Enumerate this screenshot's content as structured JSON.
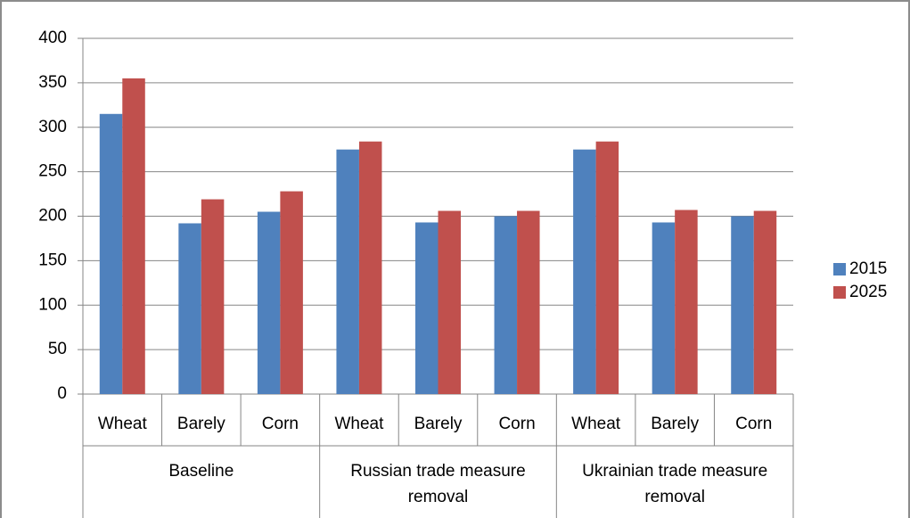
{
  "chart_data": {
    "type": "bar",
    "categories": [
      "Wheat",
      "Barely",
      "Corn",
      "Wheat",
      "Barely",
      "Corn",
      "Wheat",
      "Barely",
      "Corn"
    ],
    "groups": [
      "Baseline",
      "Russian trade measure removal",
      "Ukrainian trade measure removal"
    ],
    "series": [
      {
        "name": "2015",
        "color": "#4f81bd",
        "values": [
          315,
          192,
          205,
          275,
          193,
          200,
          275,
          193,
          200
        ]
      },
      {
        "name": "2025",
        "color": "#c0504d",
        "values": [
          355,
          219,
          228,
          284,
          206,
          206,
          284,
          207,
          206
        ]
      }
    ],
    "ylim": [
      0,
      400
    ],
    "yticks": [
      0,
      50,
      100,
      150,
      200,
      250,
      300,
      350,
      400
    ],
    "grid": true,
    "legend": "right"
  }
}
